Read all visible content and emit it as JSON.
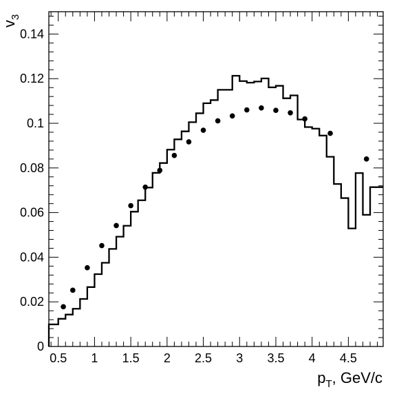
{
  "chart_data": {
    "type": "line",
    "xlabel": "p_T, GeV/c",
    "xlabel_main": "p",
    "xlabel_sub": "T",
    "xlabel_suffix": ", GeV/c",
    "ylabel": "v_3",
    "ylabel_main": "v",
    "ylabel_sub": "3",
    "xlim": [
      0.37,
      4.98
    ],
    "ylim": [
      0,
      0.15
    ],
    "grid": false,
    "x_ticks": [
      {
        "v": 0.5,
        "label": "0.5"
      },
      {
        "v": 1.0,
        "label": "1"
      },
      {
        "v": 1.5,
        "label": "1.5"
      },
      {
        "v": 2.0,
        "label": "2"
      },
      {
        "v": 2.5,
        "label": "2.5"
      },
      {
        "v": 3.0,
        "label": "3"
      },
      {
        "v": 3.5,
        "label": "3.5"
      },
      {
        "v": 4.0,
        "label": "4"
      },
      {
        "v": 4.5,
        "label": "4.5"
      }
    ],
    "y_ticks": [
      {
        "v": 0,
        "label": "0"
      },
      {
        "v": 0.02,
        "label": "0.02"
      },
      {
        "v": 0.04,
        "label": "0.04"
      },
      {
        "v": 0.06,
        "label": "0.06"
      },
      {
        "v": 0.08,
        "label": "0.08"
      },
      {
        "v": 0.1,
        "label": "0.1"
      },
      {
        "v": 0.12,
        "label": "0.12"
      },
      {
        "v": 0.14,
        "label": "0.14"
      }
    ],
    "series": [
      {
        "style": "histogram",
        "bin_edges": [
          0.37,
          0.5,
          0.6,
          0.7,
          0.8,
          0.9,
          1.0,
          1.1,
          1.2,
          1.3,
          1.4,
          1.5,
          1.6,
          1.7,
          1.8,
          1.9,
          2.0,
          2.1,
          2.2,
          2.3,
          2.4,
          2.5,
          2.6,
          2.7,
          2.8,
          2.9,
          3.0,
          3.1,
          3.2,
          3.3,
          3.4,
          3.5,
          3.6,
          3.7,
          3.8,
          3.9,
          4.0,
          4.1,
          4.2,
          4.3,
          4.4,
          4.5,
          4.6,
          4.7,
          4.8,
          4.98
        ],
        "values": [
          0.0099,
          0.0124,
          0.0143,
          0.0169,
          0.0213,
          0.0266,
          0.0324,
          0.0375,
          0.0437,
          0.0492,
          0.0541,
          0.0604,
          0.0655,
          0.0712,
          0.0778,
          0.0822,
          0.0882,
          0.0928,
          0.0964,
          0.1005,
          0.1045,
          0.109,
          0.1104,
          0.115,
          0.115,
          0.1213,
          0.1189,
          0.1182,
          0.1187,
          0.1201,
          0.1161,
          0.1168,
          0.1112,
          0.1125,
          0.1017,
          0.0983,
          0.0976,
          0.0945,
          0.085,
          0.0728,
          0.0665,
          0.0529,
          0.0777,
          0.059,
          0.0714
        ]
      },
      {
        "style": "markers",
        "x": [
          0.57,
          0.7,
          0.9,
          1.1,
          1.3,
          1.5,
          1.7,
          1.9,
          2.1,
          2.3,
          2.5,
          2.7,
          2.9,
          3.1,
          3.3,
          3.5,
          3.7,
          3.9,
          4.25,
          4.75
        ],
        "y": [
          0.0178,
          0.0252,
          0.0353,
          0.0452,
          0.0542,
          0.0631,
          0.0714,
          0.0789,
          0.0856,
          0.0917,
          0.0969,
          0.1011,
          0.1033,
          0.106,
          0.1069,
          0.1058,
          0.1047,
          0.102,
          0.0955,
          0.084
        ]
      }
    ]
  }
}
